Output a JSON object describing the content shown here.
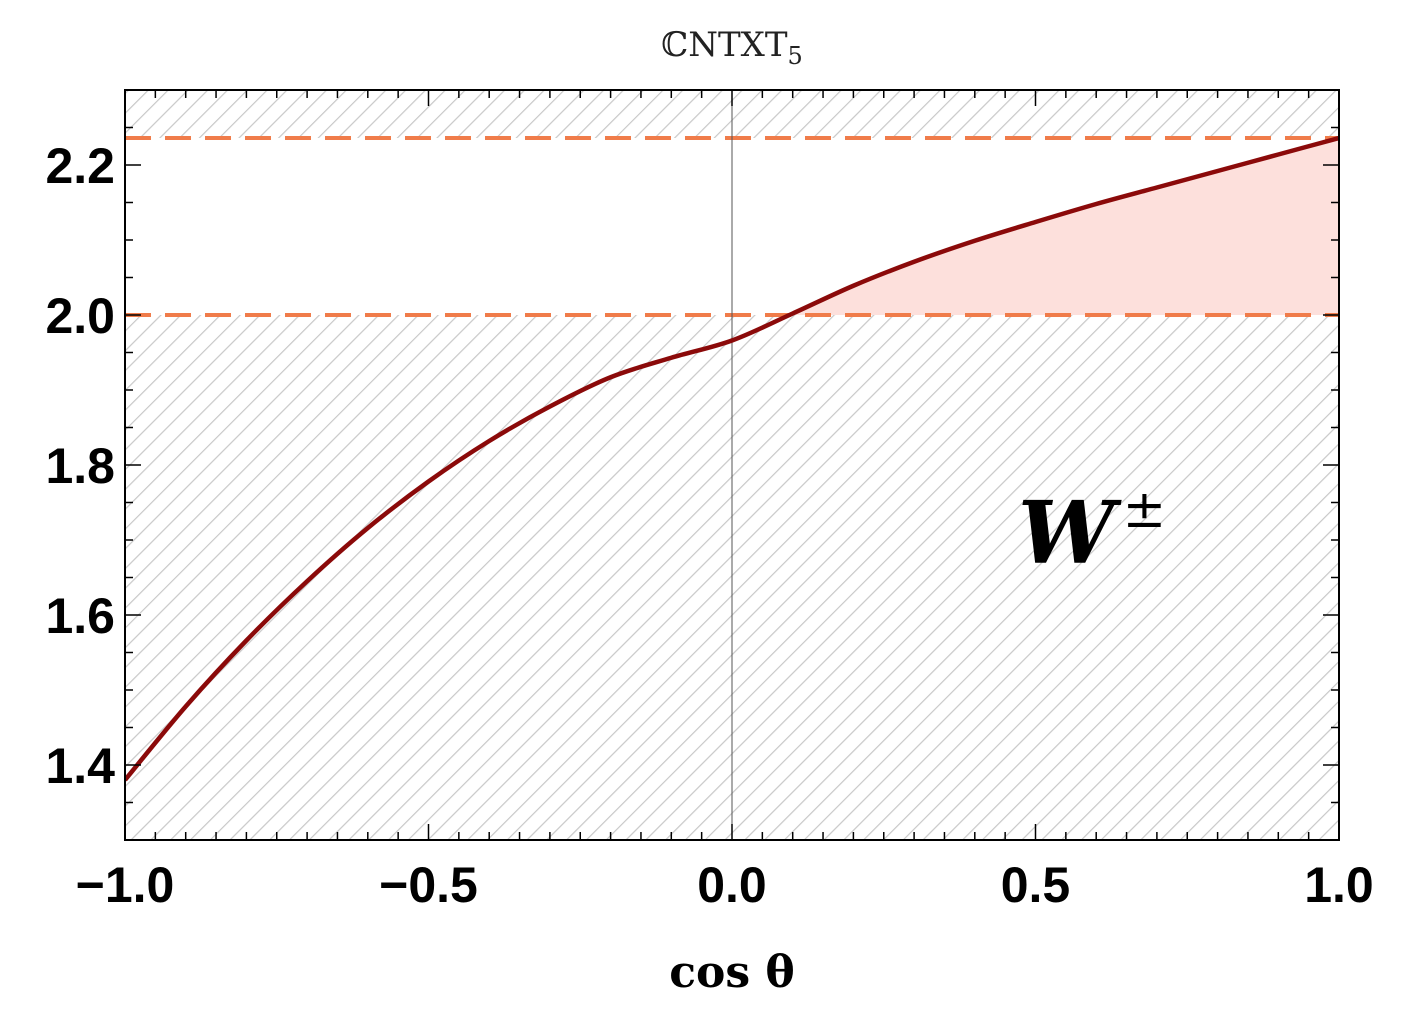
{
  "chart_data": {
    "type": "line",
    "title": "ℂNTXT",
    "title_subscript": "5",
    "xlabel": "cos θ",
    "ylabel": "",
    "xlim": [
      -1.0,
      1.0
    ],
    "ylim": [
      1.3,
      2.3
    ],
    "x_ticks": [
      -1.0,
      -0.5,
      0.0,
      0.5,
      1.0
    ],
    "x_tick_labels": [
      "−1.0",
      "−0.5",
      "0.0",
      "0.5",
      "1.0"
    ],
    "y_ticks": [
      1.4,
      1.6,
      1.8,
      2.0,
      2.2
    ],
    "y_tick_labels": [
      "1.4",
      "1.6",
      "1.8",
      "2.0",
      "2.2"
    ],
    "grid": false,
    "annotation": {
      "text": "W",
      "superscript": "±"
    },
    "reference_lines": [
      {
        "y": 2.236,
        "style": "dashed",
        "color": "#f07c4a"
      },
      {
        "y": 2.0,
        "style": "dashed",
        "color": "#f07c4a"
      }
    ],
    "vertical_line": {
      "x": 0.0
    },
    "hatched_regions": [
      {
        "y_from": 2.236,
        "y_to": 2.3
      },
      {
        "y_from": 1.3,
        "y_to": 2.0
      }
    ],
    "filled_region": {
      "between_curve_and_y": 2.0,
      "x_from": 0.1,
      "x_to": 1.0,
      "color": "#fde0dc"
    },
    "series": [
      {
        "color": "#8b0a0a",
        "x": [
          -1.0,
          -0.9,
          -0.8,
          -0.7,
          -0.6,
          -0.5,
          -0.4,
          -0.3,
          -0.2,
          -0.1,
          0.0,
          0.1,
          0.2,
          0.3,
          0.4,
          0.5,
          0.6,
          0.7,
          0.8,
          0.9,
          1.0
        ],
        "y": [
          1.38,
          1.478,
          1.566,
          1.645,
          1.716,
          1.778,
          1.832,
          1.878,
          1.917,
          1.943,
          1.966,
          2.002,
          2.039,
          2.071,
          2.099,
          2.124,
          2.148,
          2.17,
          2.192,
          2.214,
          2.236
        ]
      }
    ]
  }
}
